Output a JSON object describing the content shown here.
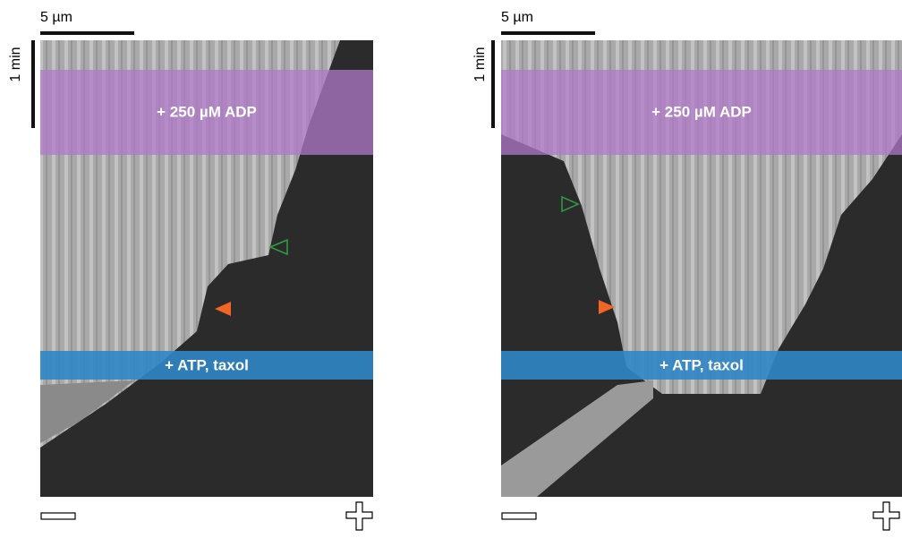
{
  "panels": [
    {
      "scale_bar_label": "5 µm",
      "time_bar_label": "1 min",
      "top_band_label": "+ 250 µM ADP",
      "bottom_band_label": "+ ATP, taxol"
    },
    {
      "scale_bar_label": "5 µm",
      "time_bar_label": "1 min",
      "top_band_label": "+ 250 µM ADP",
      "bottom_band_label": "+ ATP, taxol"
    }
  ]
}
